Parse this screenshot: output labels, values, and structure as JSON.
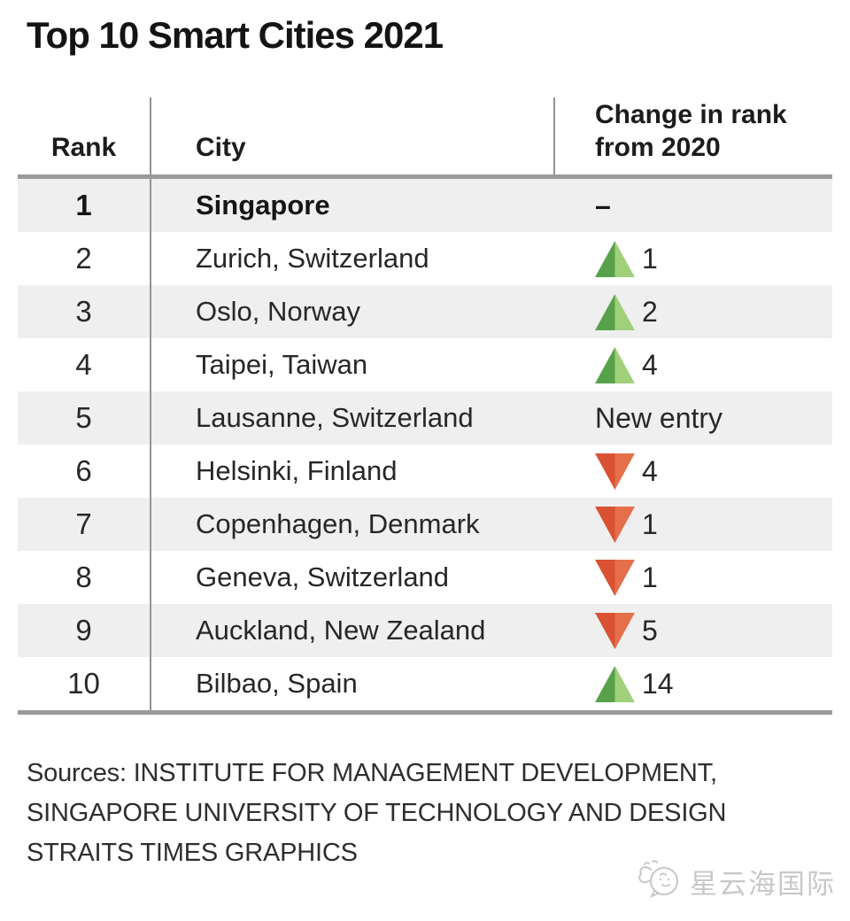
{
  "title": "Top 10 Smart Cities 2021",
  "table": {
    "header": {
      "rank": "Rank",
      "city": "City",
      "change_line1": "Change in rank",
      "change_line2": "from 2020"
    },
    "rows": [
      {
        "rank": "1",
        "city": "Singapore",
        "bold": true,
        "change": {
          "direction": "none",
          "label": "–"
        }
      },
      {
        "rank": "2",
        "city": "Zurich, Switzerland",
        "bold": false,
        "change": {
          "direction": "up",
          "label": "1"
        }
      },
      {
        "rank": "3",
        "city": "Oslo, Norway",
        "bold": false,
        "change": {
          "direction": "up",
          "label": "2"
        }
      },
      {
        "rank": "4",
        "city": "Taipei, Taiwan",
        "bold": false,
        "change": {
          "direction": "up",
          "label": "4"
        }
      },
      {
        "rank": "5",
        "city": "Lausanne, Switzerland",
        "bold": false,
        "change": {
          "direction": "new",
          "label": "New entry"
        }
      },
      {
        "rank": "6",
        "city": "Helsinki, Finland",
        "bold": false,
        "change": {
          "direction": "down",
          "label": "4"
        }
      },
      {
        "rank": "7",
        "city": "Copenhagen, Denmark",
        "bold": false,
        "change": {
          "direction": "down",
          "label": "1"
        }
      },
      {
        "rank": "8",
        "city": "Geneva, Switzerland",
        "bold": false,
        "change": {
          "direction": "down",
          "label": "1"
        }
      },
      {
        "rank": "9",
        "city": "Auckland, New Zealand",
        "bold": false,
        "change": {
          "direction": "down",
          "label": "5"
        }
      },
      {
        "rank": "10",
        "city": "Bilbao, Spain",
        "bold": false,
        "change": {
          "direction": "up",
          "label": "14"
        }
      }
    ]
  },
  "footer": {
    "lines": [
      "Sources: INSTITUTE FOR MANAGEMENT DEVELOPMENT,",
      "SINGAPORE UNIVERSITY OF TECHNOLOGY AND DESIGN",
      "STRAITS TIMES GRAPHICS"
    ]
  },
  "watermark": {
    "text": "星云海国际"
  },
  "colors": {
    "arrow_green_dark": "#57a14b",
    "arrow_green_light": "#a0d07a",
    "arrow_red_dark": "#d95233",
    "arrow_red_light": "#e56f4b",
    "row_alt_background": "#efefef",
    "rule_gray": "#9a9a9a",
    "divider_gray": "#949494"
  },
  "chart_data": {
    "type": "table",
    "title": "Top 10 Smart Cities 2021",
    "columns": [
      "Rank",
      "City",
      "Change in rank from 2020"
    ],
    "rows": [
      [
        1,
        "Singapore",
        "–"
      ],
      [
        2,
        "Zurich, Switzerland",
        "+1"
      ],
      [
        3,
        "Oslo, Norway",
        "+2"
      ],
      [
        4,
        "Taipei, Taiwan",
        "+4"
      ],
      [
        5,
        "Lausanne, Switzerland",
        "New entry"
      ],
      [
        6,
        "Helsinki, Finland",
        "-4"
      ],
      [
        7,
        "Copenhagen, Denmark",
        "-1"
      ],
      [
        8,
        "Geneva, Switzerland",
        "-1"
      ],
      [
        9,
        "Auckland, New Zealand",
        "-5"
      ],
      [
        10,
        "Bilbao, Spain",
        "+14"
      ]
    ],
    "sources": "INSTITUTE FOR MANAGEMENT DEVELOPMENT, SINGAPORE UNIVERSITY OF TECHNOLOGY AND DESIGN, STRAITS TIMES GRAPHICS"
  }
}
